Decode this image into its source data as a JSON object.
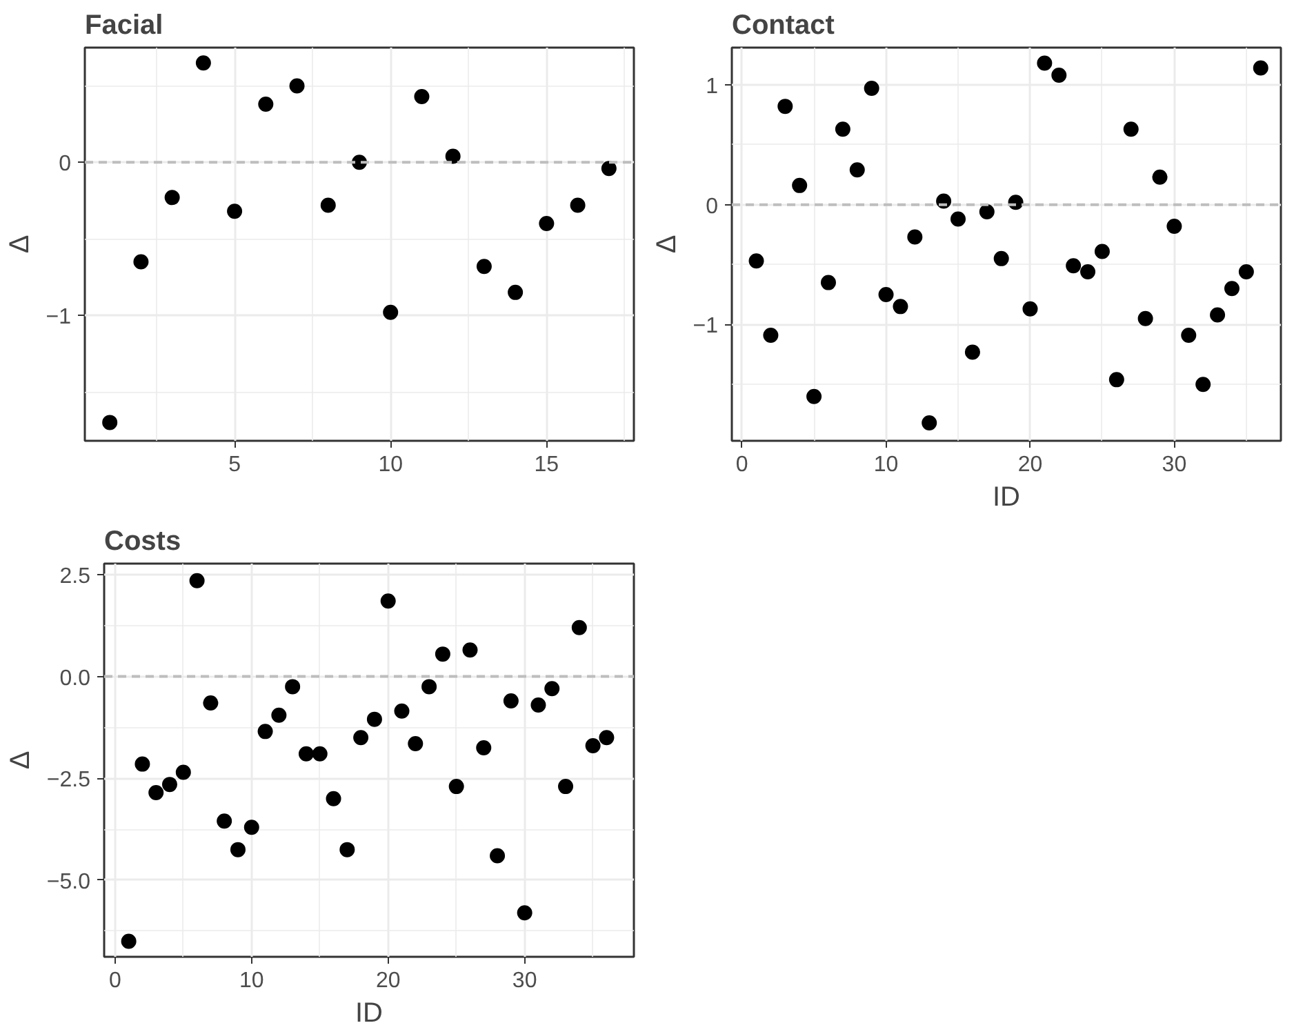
{
  "chart_data": [
    {
      "type": "scatter",
      "title": "Facial",
      "ylabel": "Δ",
      "color": "#000000",
      "marker": "circle",
      "grid": true,
      "x": [
        1,
        2,
        3,
        4,
        5,
        6,
        7,
        8,
        9,
        10,
        11,
        12,
        13,
        14,
        15,
        16,
        17
      ],
      "values": [
        -1.7,
        -0.65,
        -0.23,
        0.65,
        -0.32,
        0.38,
        0.5,
        -0.28,
        0.0,
        -0.98,
        0.43,
        0.04,
        -0.68,
        -0.85,
        -0.4,
        -0.28,
        -0.04
      ],
      "xlim": [
        0.2,
        17.8
      ],
      "ylim": [
        -1.82,
        0.75
      ],
      "xticks": [
        5,
        10,
        15
      ],
      "yticks": [
        {
          "value": -1,
          "label": "−1"
        },
        0
      ],
      "ref_lines": [
        {
          "axis": "y",
          "value": 0,
          "label": null,
          "color": "#bebebe",
          "line_style": "dashed"
        }
      ]
    },
    {
      "type": "scatter",
      "title": "Contact",
      "xlabel": "ID",
      "ylabel": "Δ",
      "color": "#000000",
      "marker": "circle",
      "grid": true,
      "x": [
        1,
        2,
        3,
        4,
        5,
        6,
        7,
        8,
        9,
        10,
        11,
        12,
        13,
        14,
        15,
        16,
        17,
        18,
        19,
        20,
        21,
        22,
        23,
        24,
        25,
        26,
        27,
        28,
        29,
        30,
        31,
        32,
        33,
        34,
        35,
        36
      ],
      "values": [
        -0.47,
        -1.09,
        0.82,
        0.16,
        -1.6,
        -0.65,
        0.63,
        0.29,
        0.97,
        -0.75,
        -0.85,
        -0.27,
        -1.82,
        0.03,
        -0.12,
        -1.23,
        -0.06,
        -0.45,
        0.02,
        -0.87,
        1.18,
        1.08,
        -0.51,
        -0.56,
        -0.39,
        -1.46,
        0.63,
        -0.95,
        0.23,
        -0.18,
        -1.09,
        -1.5,
        -0.92,
        -0.7,
        -0.56,
        1.14
      ],
      "xlim": [
        -0.7,
        37.4
      ],
      "ylim": [
        -1.97,
        1.31
      ],
      "xticks": [
        0,
        10,
        20,
        30
      ],
      "yticks": [
        {
          "value": -1,
          "label": "−1"
        },
        0,
        1
      ],
      "ref_lines": [
        {
          "axis": "y",
          "value": 0,
          "label": null,
          "color": "#bebebe",
          "line_style": "dashed"
        }
      ]
    },
    {
      "type": "scatter",
      "title": "Costs",
      "xlabel": "ID",
      "ylabel": "Δ",
      "color": "#000000",
      "marker": "circle",
      "grid": true,
      "x": [
        1,
        2,
        3,
        4,
        5,
        6,
        7,
        8,
        9,
        10,
        11,
        12,
        13,
        14,
        15,
        16,
        17,
        18,
        19,
        20,
        21,
        22,
        23,
        24,
        25,
        26,
        27,
        28,
        29,
        30,
        31,
        32,
        33,
        34,
        35,
        36
      ],
      "values": [
        -6.5,
        -2.15,
        -2.85,
        -2.65,
        -2.35,
        2.35,
        -0.65,
        -3.55,
        -4.25,
        -3.7,
        -1.35,
        -0.95,
        -0.25,
        -1.9,
        -1.9,
        -3.0,
        -4.25,
        -1.5,
        -1.05,
        1.85,
        -0.85,
        -1.65,
        -0.25,
        0.55,
        -2.7,
        0.65,
        -1.75,
        -4.4,
        -0.6,
        -5.8,
        -0.7,
        -0.3,
        -2.7,
        1.2,
        -1.7,
        -1.5
      ],
      "xlim": [
        -0.8,
        38.0
      ],
      "ylim": [
        -6.88,
        2.77
      ],
      "xticks": [
        0,
        10,
        20,
        30
      ],
      "yticks": [
        {
          "value": -5,
          "label": "−5.0"
        },
        {
          "value": -2.5,
          "label": "−2.5"
        },
        {
          "value": 0,
          "label": "0.0"
        },
        {
          "value": 2.5,
          "label": "2.5"
        }
      ],
      "ref_lines": [
        {
          "axis": "y",
          "value": 0,
          "label": null,
          "color": "#bebebe",
          "line_style": "dashed"
        }
      ]
    }
  ]
}
